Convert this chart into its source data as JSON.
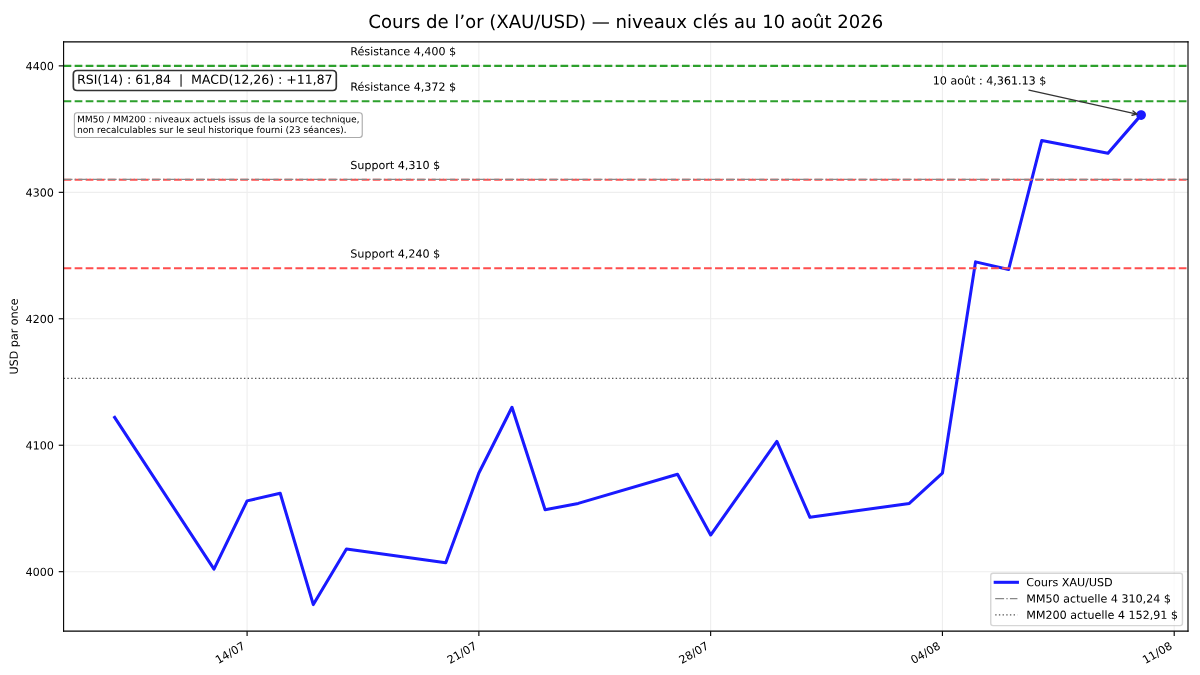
{
  "chart_data": {
    "type": "line",
    "title": "Cours de l’or (XAU/USD) — niveaux clés au 10 août 2026",
    "ylabel": "USD par once",
    "x": [
      "2026-07-10",
      "2026-07-13",
      "2026-07-14",
      "2026-07-15",
      "2026-07-16",
      "2026-07-17",
      "2026-07-20",
      "2026-07-21",
      "2026-07-22",
      "2026-07-23",
      "2026-07-24",
      "2026-07-27",
      "2026-07-28",
      "2026-07-30",
      "2026-07-31",
      "2026-08-03",
      "2026-08-04",
      "2026-08-05",
      "2026-08-06",
      "2026-08-07",
      "2026-08-09",
      "2026-08-10"
    ],
    "series": [
      {
        "name": "Cours XAU/USD",
        "color": "#1a1aff",
        "values": [
          4122,
          4002,
          4056,
          4062,
          3974,
          4018,
          4007,
          4078,
          4130,
          4049,
          4054,
          4077,
          4029,
          4103,
          4043,
          4054,
          4078,
          4245,
          4239,
          4341,
          4331,
          4361.13
        ]
      }
    ],
    "xlim": [
      "2026-07-08T11:00",
      "2026-08-11T10:00"
    ],
    "xticks": [
      {
        "value": "2026-07-14",
        "label": "14/07"
      },
      {
        "value": "2026-07-21",
        "label": "21/07"
      },
      {
        "value": "2026-07-28",
        "label": "28/07"
      },
      {
        "value": "2026-08-04",
        "label": "04/08"
      },
      {
        "value": "2026-08-11",
        "label": "11/08"
      }
    ],
    "ylim": [
      3953,
      4419
    ],
    "yticks": [
      4000,
      4100,
      4200,
      4300,
      4400
    ],
    "ref_lines": [
      {
        "axis": "y",
        "value": 4400,
        "label": "Résistance 4,400 $",
        "color": "#2ca02c",
        "line_style": "dashed"
      },
      {
        "axis": "y",
        "value": 4372,
        "label": "Résistance 4,372 $",
        "color": "#2ca02c",
        "line_style": "dashed"
      },
      {
        "axis": "y",
        "value": 4310,
        "label": "Support 4,310 $",
        "color": "#ff4d4d",
        "line_style": "dashed"
      },
      {
        "axis": "y",
        "value": 4240,
        "label": "Support 4,240 $",
        "color": "#ff4d4d",
        "line_style": "dashed"
      },
      {
        "axis": "y",
        "value": 4310.24,
        "label": "MM50 actuelle 4 310,24 $",
        "color": "#888888",
        "line_style": "dashdot"
      },
      {
        "axis": "y",
        "value": 4152.91,
        "label": "MM200 actuelle 4 152,91 $",
        "color": "#555555",
        "line_style": "dotted"
      }
    ],
    "annotations": [
      "RSI(14) : 61,84  |  MACD(12,26) : +11,87",
      "MM50 / MM200 : niveaux actuels issus de la source technique,\nnon recalculables sur le seul historique fourni (23 séances).",
      {
        "text": "10 août : 4,361.13 $",
        "x": "2026-08-10",
        "y": 4361.13
      }
    ],
    "grid": true,
    "legend": "bottom right",
    "line_style": "solid"
  }
}
